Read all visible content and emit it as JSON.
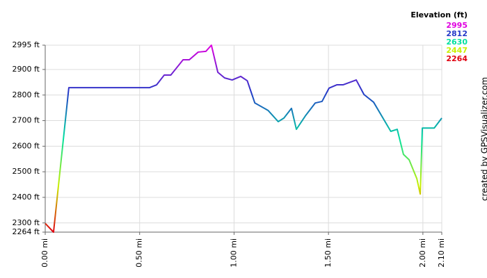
{
  "chart_data": {
    "type": "line",
    "side_note": "created by GPSVisualizer.com",
    "legend_title": "Elevation (ft)",
    "color_scale": [
      {
        "value": 2995,
        "color": "#e000e0"
      },
      {
        "value": 2812,
        "color": "#2438c8"
      },
      {
        "value": 2630,
        "color": "#00e0a0"
      },
      {
        "value": 2447,
        "color": "#c8f000"
      },
      {
        "value": 2264,
        "color": "#e00010"
      }
    ],
    "x": [
      0,
      0.044,
      0.125,
      0.553,
      0.59,
      0.63,
      0.665,
      0.73,
      0.763,
      0.81,
      0.851,
      0.88,
      0.914,
      0.95,
      0.99,
      1.035,
      1.07,
      1.11,
      1.18,
      1.234,
      1.264,
      1.304,
      1.33,
      1.38,
      1.43,
      1.466,
      1.503,
      1.544,
      1.577,
      1.647,
      1.688,
      1.739,
      1.83,
      1.864,
      1.897,
      1.927,
      1.968,
      1.986,
      1.997,
      2.06,
      2.1
    ],
    "series": [
      {
        "values": [
          2298,
          2264,
          2829,
          2829,
          2840,
          2878,
          2878,
          2938,
          2938,
          2968,
          2971,
          2995,
          2889,
          2867,
          2859,
          2873,
          2856,
          2769,
          2740,
          2696,
          2710,
          2748,
          2666,
          2721,
          2769,
          2775,
          2827,
          2840,
          2840,
          2859,
          2802,
          2772,
          2658,
          2666,
          2568,
          2547,
          2473,
          2413,
          2671,
          2671,
          2710
        ]
      }
    ],
    "xlim": [
      0,
      2.1
    ],
    "xticks": [
      {
        "value": 0,
        "label": "0.00 mi"
      },
      {
        "value": 0.5,
        "label": "0.50 mi"
      },
      {
        "value": 1,
        "label": "1.00 mi"
      },
      {
        "value": 1.5,
        "label": "1.50 mi"
      },
      {
        "value": 2,
        "label": "2.00 mi"
      },
      {
        "value": 2.1,
        "label": "2.10 mi"
      }
    ],
    "ylim": [
      2264,
      2995
    ],
    "yticks": [
      {
        "value": 2264,
        "label": "2264 ft"
      },
      {
        "value": 2300,
        "label": "2300 ft"
      },
      {
        "value": 2400,
        "label": "2400 ft"
      },
      {
        "value": 2500,
        "label": "2500 ft"
      },
      {
        "value": 2600,
        "label": "2600 ft"
      },
      {
        "value": 2700,
        "label": "2700 ft"
      },
      {
        "value": 2800,
        "label": "2800 ft"
      },
      {
        "value": 2900,
        "label": "2900 ft"
      },
      {
        "value": 2995,
        "label": "2995 ft"
      }
    ],
    "grid": true
  }
}
